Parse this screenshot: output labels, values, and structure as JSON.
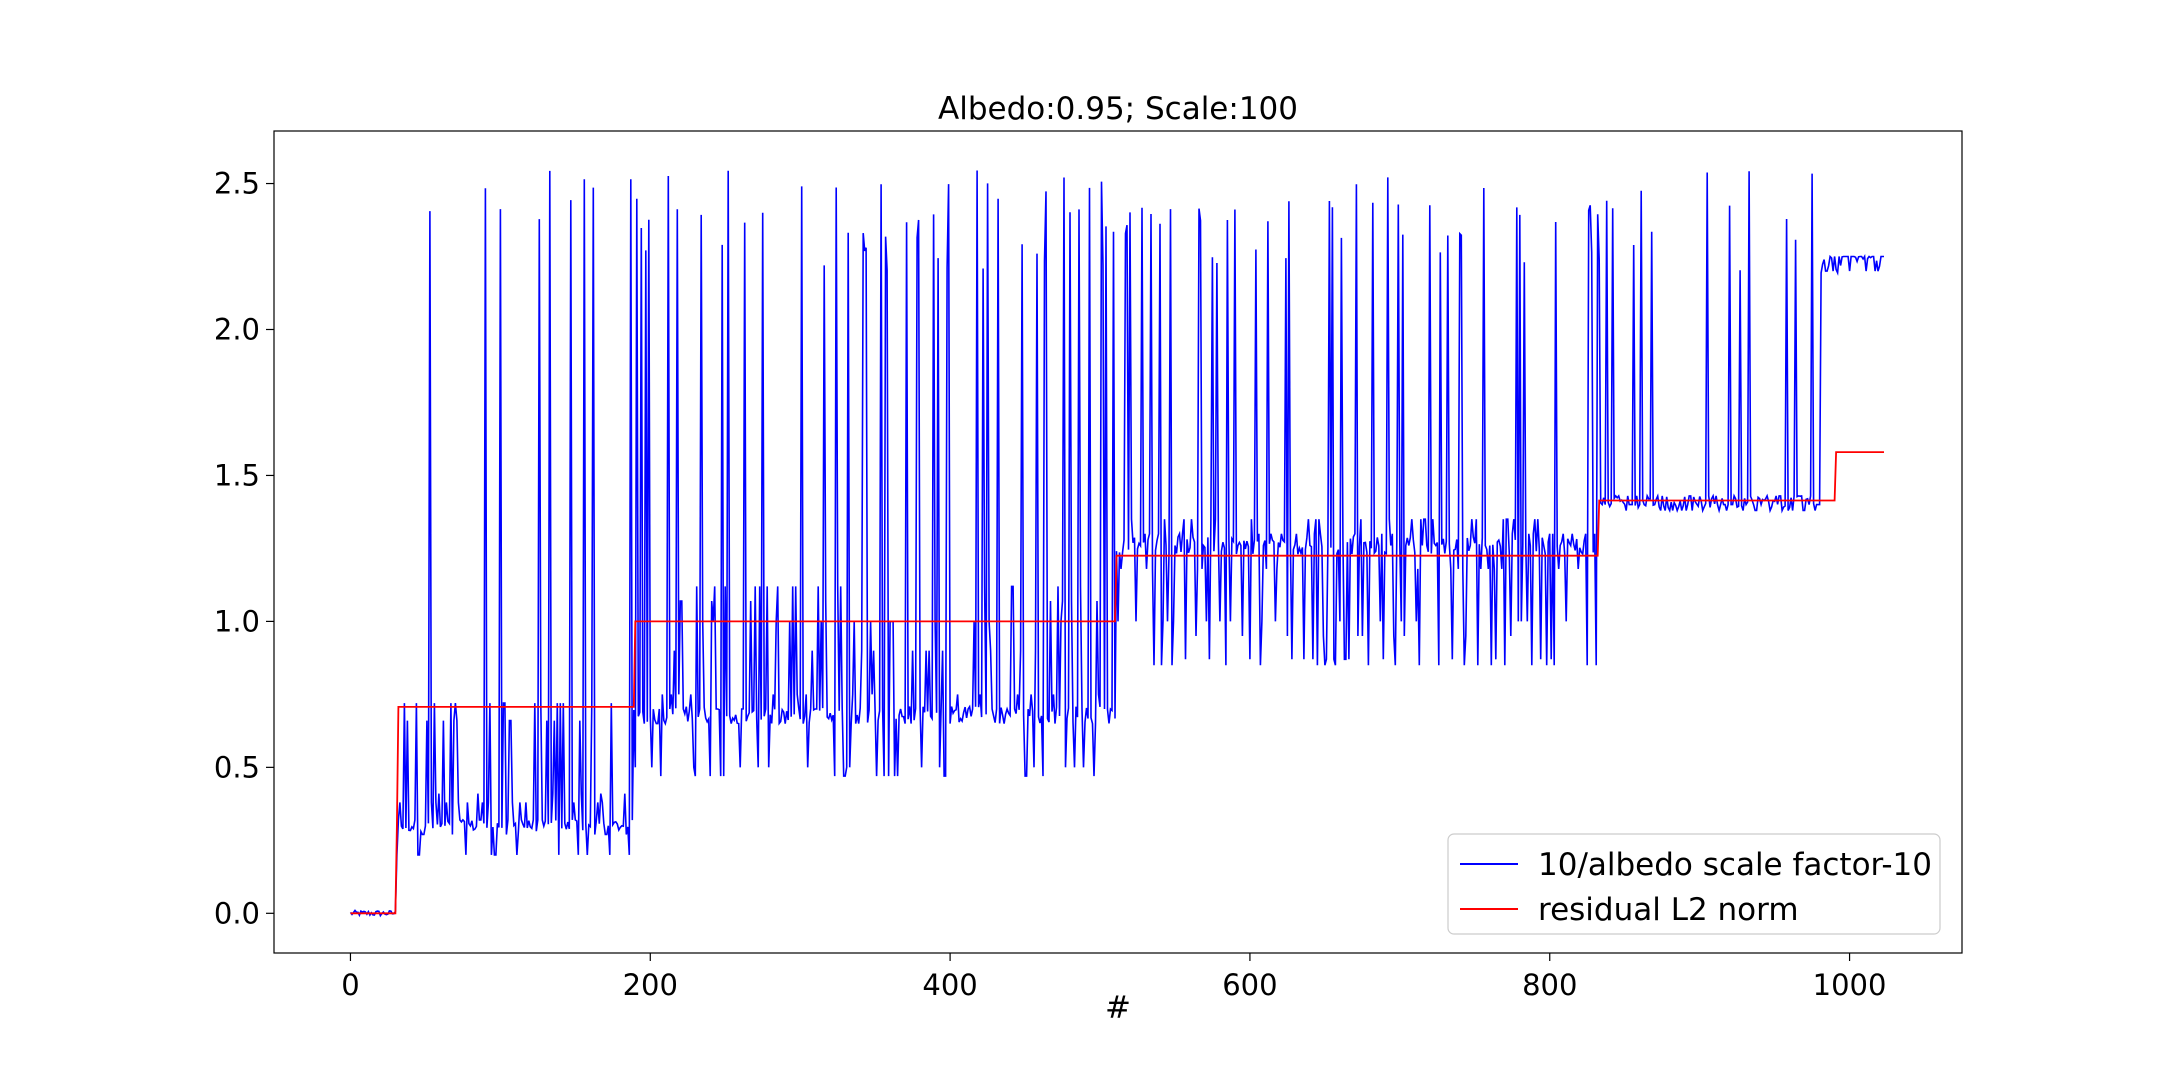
{
  "chart_data": {
    "type": "line",
    "title": "Albedo:0.95; Scale:100",
    "xlabel": "#",
    "ylabel": "",
    "xlim": [
      -51,
      1075
    ],
    "ylim": [
      -0.136,
      2.68
    ],
    "x_ticks": [
      0,
      200,
      400,
      600,
      800,
      1000
    ],
    "x_tick_labels": [
      "0",
      "200",
      "400",
      "600",
      "800",
      "1000"
    ],
    "y_ticks": [
      0.0,
      0.5,
      1.0,
      1.5,
      2.0,
      2.5
    ],
    "y_tick_labels": [
      "0.0",
      "0.5",
      "1.0",
      "1.5",
      "2.0",
      "2.5"
    ],
    "grid": false,
    "legend_position": "lower-right",
    "series": [
      {
        "name": "10/albedo scale factor-10",
        "color": "#0000ff",
        "segments": [
          {
            "x_start": 0,
            "x_end": 30,
            "baseline": 0.0,
            "levels": [
              0.0
            ],
            "spikes": [],
            "noise": 0.01
          },
          {
            "x_start": 31,
            "x_end": 31,
            "baseline": 0.2,
            "levels": [
              0.2
            ],
            "spikes": [],
            "noise": 0.0
          },
          {
            "x_start": 32,
            "x_end": 188,
            "baseline": 0.3,
            "levels": [
              0.2,
              0.27,
              0.32,
              0.38,
              0.41,
              0.66,
              0.72
            ],
            "spikes": [
              53,
              90,
              100,
              126,
              133,
              147,
              156,
              162,
              187
            ],
            "noise": 0.02
          },
          {
            "x_start": 189,
            "x_end": 510,
            "baseline": 0.68,
            "levels": [
              0.47,
              0.5,
              0.65,
              0.7,
              0.75,
              0.9,
              1.0,
              1.07,
              1.12
            ],
            "spikes": [
              191,
              212,
              218,
              234,
              252,
              275,
              301,
              324,
              354,
              379,
              399,
              418,
              425,
              432,
              464,
              476,
              480,
              486,
              493,
              501
            ],
            "noise": 0.03
          },
          {
            "x_start": 511,
            "x_end": 831,
            "baseline": 1.26,
            "levels": [
              0.85,
              0.87,
              0.95,
              1.0,
              1.18,
              1.26,
              1.3,
              1.35
            ],
            "spikes": [
              520,
              547,
              566,
              590,
              626,
              653,
              671,
              692,
              720,
              756,
              780,
              826
            ],
            "noise": 0.03
          },
          {
            "x_start": 832,
            "x_end": 980,
            "baseline": 1.41,
            "levels": [
              1.38,
              1.4,
              1.43
            ],
            "spikes": [
              838,
              861,
              905,
              933,
              958,
              975
            ],
            "noise": 0.02
          },
          {
            "x_start": 981,
            "x_end": 1023,
            "baseline": 2.22,
            "levels": [
              2.2,
              2.25
            ],
            "spikes": [],
            "noise": 0.03
          }
        ],
        "peak_values": {
          "high": 2.45,
          "top": 2.55
        }
      },
      {
        "name": "residual L2 norm",
        "color": "#ff0000",
        "x": [
          0,
          30,
          31,
          32,
          189,
          190,
          510,
          511,
          832,
          833,
          990,
          991,
          1023
        ],
        "y": [
          0.0,
          0.0,
          0.3,
          0.707,
          0.707,
          1.0,
          1.0,
          1.225,
          1.225,
          1.414,
          1.414,
          1.58,
          1.58
        ]
      }
    ]
  }
}
